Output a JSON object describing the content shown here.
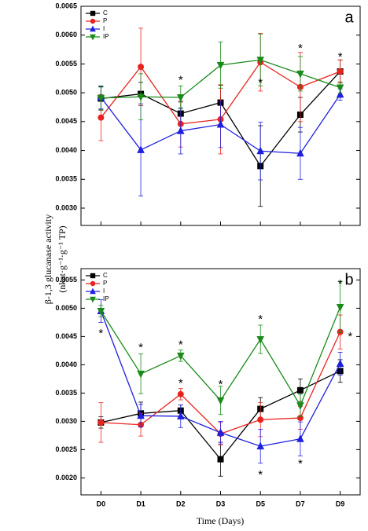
{
  "ylabel_lines": [
    "β-1,3 glucanase activity",
    "(nkat·g⁻¹·g⁻¹ TP)"
  ],
  "xlabel": "Time (Days)",
  "chart_data": [
    {
      "type": "line",
      "panel": "a",
      "legend": "upper left",
      "categories": [
        null,
        null,
        null,
        null,
        null,
        null,
        null
      ],
      "ylim": [
        0.0027,
        0.0065
      ],
      "yticks": [
        {
          "value": 0.003,
          "label": "0.0030"
        },
        {
          "value": 0.0035,
          "label": "0.0035"
        },
        {
          "value": 0.004,
          "label": "0.0040"
        },
        {
          "value": 0.0045,
          "label": "0.0045"
        },
        {
          "value": 0.005,
          "label": "0.0050"
        },
        {
          "value": 0.0055,
          "label": "0.0055"
        },
        {
          "value": 0.006,
          "label": "0.0060"
        },
        {
          "value": 0.0065,
          "label": "0.0065"
        }
      ],
      "series": [
        {
          "name": "C",
          "color": "#000000",
          "marker": "square",
          "values": [
            0.0049,
            0.00498,
            0.00464,
            0.00483,
            0.00373,
            0.00462,
            0.00537
          ],
          "errors": [
            0.0002,
            0.0002,
            0.0002,
            0.0003,
            0.0007,
            0.0003,
            0.0002
          ]
        },
        {
          "name": "P",
          "color": "#e8231e",
          "marker": "circle",
          "values": [
            0.00457,
            0.00545,
            0.00446,
            0.00454,
            0.00553,
            0.0051,
            0.00537
          ],
          "errors": [
            0.0004,
            0.00067,
            0.0004,
            0.0006,
            0.0005,
            0.0006,
            0.0002
          ]
        },
        {
          "name": "I",
          "color": "#1f1fe0",
          "marker": "triangle-up",
          "values": [
            0.00492,
            0.00401,
            0.00434,
            0.00445,
            0.00399,
            0.00395,
            0.00497
          ],
          "errors": [
            0.0002,
            0.0008,
            0.0004,
            0.0004,
            0.0005,
            0.00045,
            0.0001
          ]
        },
        {
          "name": "IP",
          "color": "#1a8a1a",
          "marker": "triangle-down",
          "values": [
            0.00491,
            0.00493,
            0.00492,
            0.00548,
            0.00557,
            0.00533,
            0.00509
          ],
          "errors": [
            0.0002,
            0.0004,
            0.0002,
            0.0004,
            0.00045,
            0.0003,
            0.0001
          ]
        }
      ],
      "annotations": [
        {
          "text": "*",
          "category": 2,
          "y": 0.00527
        },
        {
          "text": "*",
          "category": 4,
          "y": 0.00522
        },
        {
          "text": "*",
          "category": 5,
          "y": 0.00582
        },
        {
          "text": "*",
          "category": 6,
          "y": 0.00567
        }
      ]
    },
    {
      "type": "line",
      "panel": "b",
      "legend": "upper left",
      "categories": [
        "D0",
        "D1",
        "D2",
        "D3",
        "D5",
        "D7",
        "D9"
      ],
      "ylim": [
        0.0017,
        0.0057
      ],
      "yticks": [
        {
          "value": 0.002,
          "label": "0.0020"
        },
        {
          "value": 0.0025,
          "label": "0.0025"
        },
        {
          "value": 0.003,
          "label": "0.0030"
        },
        {
          "value": 0.0035,
          "label": "0.0035"
        },
        {
          "value": 0.004,
          "label": "0.0040"
        },
        {
          "value": 0.0045,
          "label": "0.0045"
        },
        {
          "value": 0.005,
          "label": "0.0050"
        },
        {
          "value": 0.0055,
          "label": "0.0055"
        }
      ],
      "series": [
        {
          "name": "C",
          "color": "#000000",
          "marker": "square",
          "values": [
            0.00298,
            0.00314,
            0.00319,
            0.00233,
            0.00322,
            0.00355,
            0.00389
          ],
          "errors": [
            0.0001,
            0.0002,
            0.0001,
            0.0003,
            0.0002,
            0.0002,
            0.0002
          ]
        },
        {
          "name": "P",
          "color": "#e8231e",
          "marker": "circle",
          "values": [
            0.00298,
            0.00294,
            0.00348,
            0.00278,
            0.00303,
            0.00306,
            0.00458
          ],
          "errors": [
            0.00035,
            0.0002,
            0.0001,
            0.0002,
            0.0003,
            0.0002,
            0.0003
          ]
        },
        {
          "name": "I",
          "color": "#1f1fe0",
          "marker": "triangle-up",
          "values": [
            0.00495,
            0.0031,
            0.00309,
            0.0028,
            0.00256,
            0.00269,
            0.00402
          ],
          "errors": [
            0.0002,
            0.0002,
            0.0002,
            0.0002,
            0.0003,
            0.0003,
            0.0002
          ]
        },
        {
          "name": "IP",
          "color": "#1a8a1a",
          "marker": "triangle-down",
          "values": [
            0.00495,
            0.00384,
            0.00416,
            0.00337,
            0.00445,
            0.00328,
            0.00502
          ],
          "errors": [
            0.0001,
            0.00035,
            0.0001,
            0.00025,
            0.00025,
            0.0002,
            0.00045
          ]
        }
      ],
      "annotations": [
        {
          "text": "*",
          "category": 0,
          "y": 0.0046
        },
        {
          "text": "*",
          "category": 1,
          "y": 0.00435
        },
        {
          "text": "*",
          "category": 2,
          "y": 0.00372
        },
        {
          "text": "*",
          "category": 2,
          "y": 0.0044
        },
        {
          "text": "*",
          "category": 3,
          "y": 0.0037
        },
        {
          "text": "*",
          "category": 4,
          "y": 0.00485
        },
        {
          "text": "*",
          "category": 4,
          "y": 0.0021
        },
        {
          "text": "*",
          "category": 5,
          "y": 0.0023
        },
        {
          "text": "*",
          "category": 6,
          "y": 0.00548
        },
        {
          "text": "*",
          "category": 6.25,
          "y": 0.00455
        }
      ]
    }
  ]
}
